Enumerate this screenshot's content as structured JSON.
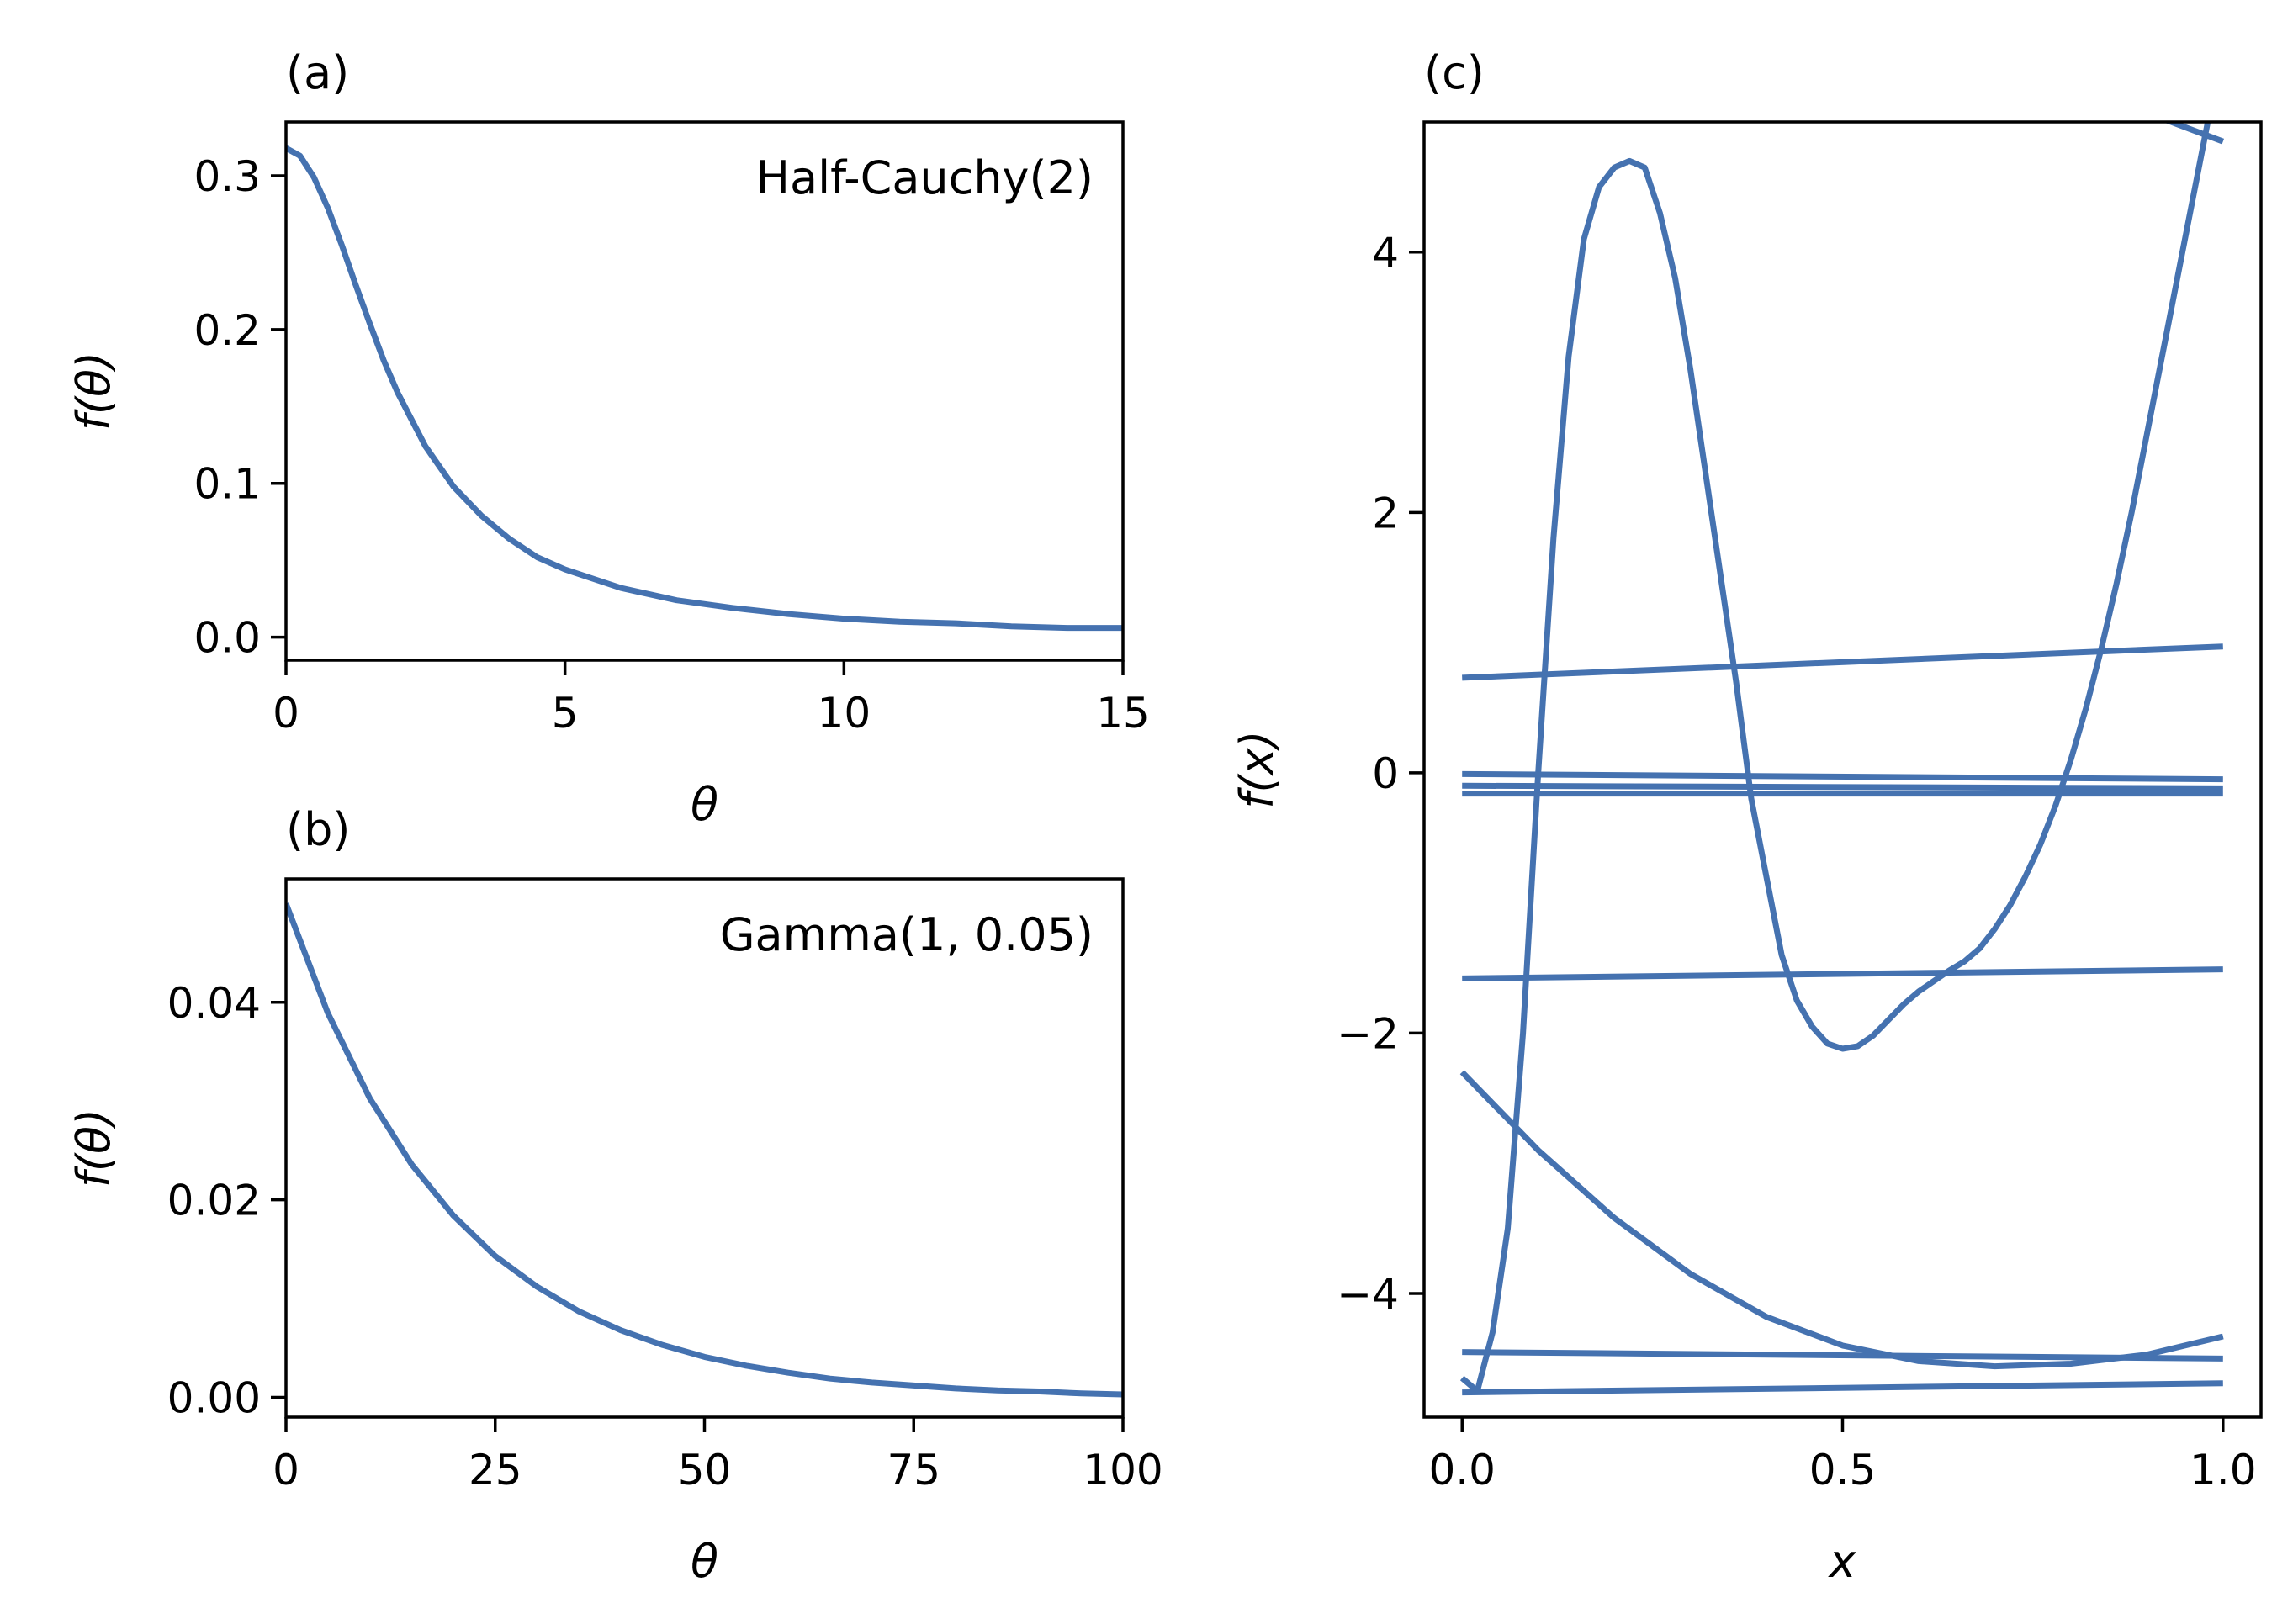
{
  "colors": {
    "line": "#4572b0",
    "axis": "#000000",
    "background": "#ffffff"
  },
  "chart_data": [
    {
      "panel": "(a)",
      "type": "line",
      "annotation": "Half-Cauchy(2)",
      "xlabel": "θ",
      "ylabel": "f(θ)",
      "xlim": [
        0,
        15
      ],
      "ylim": [
        -0.015,
        0.335
      ],
      "xticks": [
        0,
        5,
        10,
        15
      ],
      "xtick_labels": [
        "0",
        "5",
        "10",
        "15"
      ],
      "yticks": [
        0.0,
        0.1,
        0.2,
        0.3
      ],
      "ytick_labels": [
        "0.0",
        "0.1",
        "0.2",
        "0.3"
      ],
      "grid": false,
      "series": [
        {
          "x": [
            0,
            0.25,
            0.5,
            0.75,
            1,
            1.25,
            1.5,
            1.75,
            2,
            2.5,
            3,
            3.5,
            4,
            4.5,
            5,
            6,
            7,
            8,
            9,
            10,
            11,
            12,
            13,
            14,
            15
          ],
          "y": [
            0.318,
            0.313,
            0.299,
            0.279,
            0.255,
            0.229,
            0.204,
            0.18,
            0.159,
            0.124,
            0.098,
            0.079,
            0.064,
            0.052,
            0.044,
            0.032,
            0.024,
            0.019,
            0.015,
            0.012,
            0.01,
            0.009,
            0.007,
            0.006,
            0.006
          ]
        }
      ]
    },
    {
      "panel": "(b)",
      "type": "line",
      "annotation": "Gamma(1, 0.05)",
      "xlabel": "θ",
      "ylabel": "f(θ)",
      "xlim": [
        0,
        100
      ],
      "ylim": [
        -0.002,
        0.0525
      ],
      "xticks": [
        0,
        25,
        50,
        75,
        100
      ],
      "xtick_labels": [
        "0",
        "25",
        "50",
        "75",
        "100"
      ],
      "yticks": [
        0.0,
        0.02,
        0.04
      ],
      "ytick_labels": [
        "0.00",
        "0.02",
        "0.04"
      ],
      "grid": false,
      "series": [
        {
          "x": [
            0,
            5,
            10,
            15,
            20,
            25,
            30,
            35,
            40,
            45,
            50,
            55,
            60,
            65,
            70,
            75,
            80,
            85,
            90,
            95,
            100
          ],
          "y": [
            0.05,
            0.0389,
            0.0303,
            0.0236,
            0.0184,
            0.0143,
            0.0112,
            0.0087,
            0.0068,
            0.0053,
            0.0041,
            0.0032,
            0.0025,
            0.0019,
            0.0015,
            0.0012,
            0.0009,
            0.0007,
            0.0006,
            0.0004,
            0.0003
          ]
        }
      ]
    },
    {
      "panel": "(c)",
      "type": "line",
      "xlabel": "x",
      "ylabel": "f(x)",
      "xlim": [
        -0.05,
        1.05
      ],
      "ylim": [
        -4.95,
        5.0
      ],
      "xticks": [
        0.0,
        0.5,
        1.0
      ],
      "xtick_labels": [
        "0.0",
        "0.5",
        "1.0"
      ],
      "yticks": [
        -4,
        -2,
        0,
        2,
        4
      ],
      "ytick_labels": [
        "−4",
        "−2",
        "0",
        "2",
        "4"
      ],
      "grid": false,
      "series": [
        {
          "x": [
            0,
            0.02,
            0.04,
            0.06,
            0.08,
            0.1,
            0.12,
            0.14,
            0.16,
            0.18,
            0.2,
            0.22,
            0.24,
            0.26,
            0.28,
            0.3,
            0.32,
            0.34,
            0.36,
            0.38,
            0.4,
            0.42,
            0.44,
            0.46,
            0.48,
            0.5,
            0.52,
            0.54,
            0.56,
            0.58,
            0.6,
            0.62,
            0.64,
            0.66,
            0.68,
            0.7,
            0.72,
            0.74,
            0.76,
            0.78,
            0.8,
            0.82,
            0.84,
            0.86,
            0.88,
            0.9,
            0.92,
            0.94,
            0.96,
            0.98,
            1.0
          ],
          "y": [
            -4.65,
            -4.75,
            -4.3,
            -3.5,
            -2.0,
            0.0,
            1.8,
            3.2,
            4.1,
            4.5,
            4.65,
            4.7,
            4.65,
            4.3,
            3.8,
            3.1,
            2.3,
            1.5,
            0.7,
            -0.2,
            -0.8,
            -1.4,
            -1.75,
            -1.95,
            -2.08,
            -2.12,
            -2.1,
            -2.02,
            -1.9,
            -1.78,
            -1.68,
            -1.6,
            -1.52,
            -1.45,
            -1.35,
            -1.2,
            -1.02,
            -0.8,
            -0.55,
            -0.25,
            0.1,
            0.5,
            0.95,
            1.45,
            2.0,
            2.6,
            3.2,
            3.8,
            4.4,
            5.0,
            5.6
          ]
        },
        {
          "x": [
            0.75,
            1.0
          ],
          "y": [
            5.4,
            4.85
          ]
        },
        {
          "x": [
            0,
            0.1,
            0.2,
            0.3,
            0.4,
            0.5,
            0.6,
            0.7,
            0.8,
            0.9,
            1.0
          ],
          "y": [
            -2.3,
            -2.9,
            -3.42,
            -3.85,
            -4.18,
            -4.4,
            -4.52,
            -4.56,
            -4.54,
            -4.47,
            -4.33
          ]
        },
        {
          "x": [
            0,
            1.0
          ],
          "y": [
            0.73,
            0.97
          ]
        },
        {
          "x": [
            0,
            1.0
          ],
          "y": [
            -0.01,
            -0.05
          ]
        },
        {
          "x": [
            0,
            1.0
          ],
          "y": [
            -0.1,
            -0.12
          ]
        },
        {
          "x": [
            0,
            1.0
          ],
          "y": [
            -0.16,
            -0.16
          ]
        },
        {
          "x": [
            0,
            1.0
          ],
          "y": [
            -1.58,
            -1.51
          ]
        },
        {
          "x": [
            0,
            1.0
          ],
          "y": [
            -4.45,
            -4.5
          ]
        },
        {
          "x": [
            0,
            1.0
          ],
          "y": [
            -4.76,
            -4.69
          ]
        }
      ]
    }
  ]
}
